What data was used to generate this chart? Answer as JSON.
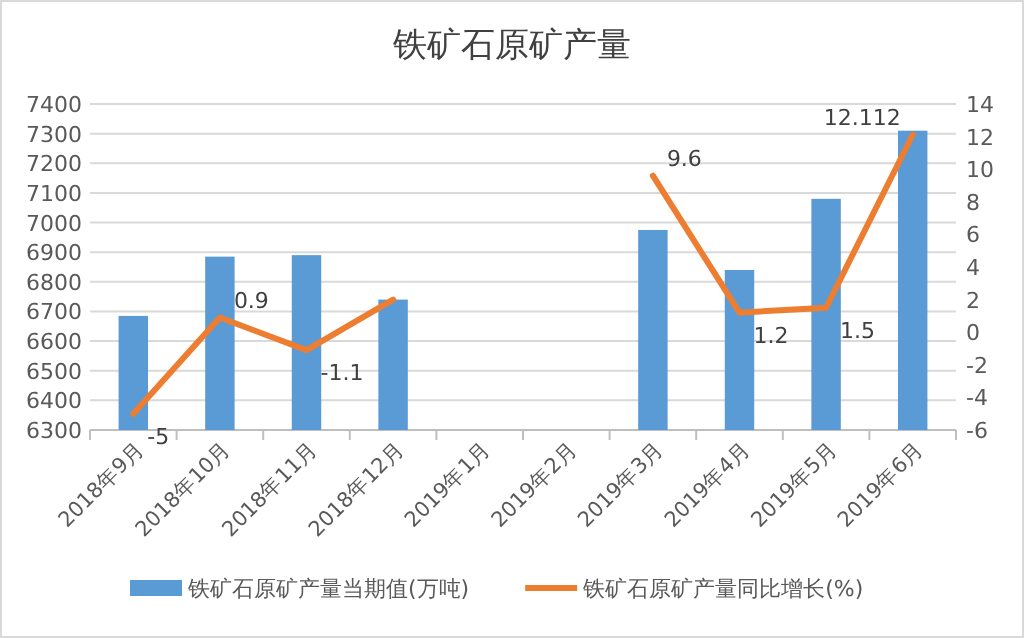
{
  "chart_data": {
    "type": "bar",
    "title": "铁矿石原矿产量",
    "categories": [
      "2018年9月",
      "2018年10月",
      "2018年11月",
      "2018年12月",
      "2019年1月",
      "2019年2月",
      "2019年3月",
      "2019年4月",
      "2019年5月",
      "2019年6月"
    ],
    "series": [
      {
        "name": "铁矿石原矿产量当期值(万吨)",
        "color": "#5b9bd5",
        "values": [
          6685,
          6885,
          6890,
          6740,
          null,
          null,
          6975,
          6840,
          7080,
          7310
        ]
      },
      {
        "name": "铁矿石原矿产量同比增长(%)",
        "type": "line",
        "axis": "y2",
        "color": "#ed7d31",
        "values": [
          -5,
          0.9,
          -1.1,
          2,
          null,
          null,
          9.6,
          1.2,
          1.5,
          12.112
        ],
        "value_labels": [
          "-5",
          "0.9",
          "-1.1",
          null,
          null,
          null,
          "9.6",
          "1.2",
          "1.5",
          "12.112"
        ]
      }
    ],
    "ylim": [
      6300,
      7400
    ],
    "yticks": [
      6300,
      6400,
      6500,
      6600,
      6700,
      6800,
      6900,
      7000,
      7100,
      7200,
      7300,
      7400
    ],
    "y2lim": [
      -6,
      14
    ],
    "y2ticks": [
      -6,
      -4,
      -2,
      0,
      2,
      4,
      6,
      8,
      10,
      12,
      14
    ],
    "grid": "y",
    "legend": "bottom"
  }
}
